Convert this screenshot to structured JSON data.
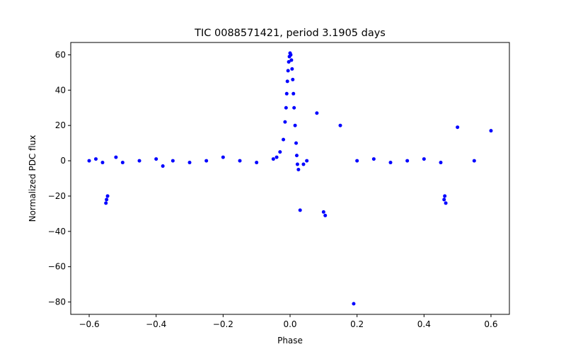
{
  "chart_data": {
    "type": "scatter",
    "title": "TIC 0088571421, period 3.1905 days",
    "xlabel": "Phase",
    "ylabel": "Normalized PDC flux",
    "xlim": [
      -0.655,
      0.655
    ],
    "ylim": [
      -87,
      67
    ],
    "xticks": [
      -0.6,
      -0.4,
      -0.2,
      0.0,
      0.2,
      0.4,
      0.6
    ],
    "xtick_labels": [
      "−0.6",
      "−0.4",
      "−0.2",
      "0.0",
      "0.2",
      "0.4",
      "0.6"
    ],
    "yticks": [
      -80,
      -60,
      -40,
      -20,
      0,
      20,
      40,
      60
    ],
    "ytick_labels": [
      "−80",
      "−60",
      "−40",
      "−20",
      "0",
      "20",
      "40",
      "60"
    ],
    "grid": false,
    "marker_color": "#0000ff",
    "series": [
      {
        "points": [
          [
            -0.6,
            0
          ],
          [
            -0.58,
            1
          ],
          [
            -0.56,
            -1
          ],
          [
            -0.55,
            -24
          ],
          [
            -0.548,
            -22
          ],
          [
            -0.545,
            -20
          ],
          [
            -0.52,
            2
          ],
          [
            -0.5,
            -1
          ],
          [
            -0.45,
            0
          ],
          [
            -0.4,
            1
          ],
          [
            -0.38,
            -3
          ],
          [
            -0.35,
            0
          ],
          [
            -0.3,
            -1
          ],
          [
            -0.25,
            0
          ],
          [
            -0.2,
            2
          ],
          [
            -0.15,
            0
          ],
          [
            -0.1,
            -1
          ],
          [
            -0.05,
            1
          ],
          [
            -0.04,
            2
          ],
          [
            -0.03,
            5
          ],
          [
            -0.02,
            12
          ],
          [
            -0.015,
            22
          ],
          [
            -0.012,
            30
          ],
          [
            -0.01,
            38
          ],
          [
            -0.008,
            45
          ],
          [
            -0.006,
            51
          ],
          [
            -0.004,
            56
          ],
          [
            -0.002,
            59
          ],
          [
            0.0,
            61
          ],
          [
            0.002,
            60
          ],
          [
            0.004,
            57
          ],
          [
            0.006,
            52
          ],
          [
            0.008,
            46
          ],
          [
            0.01,
            38
          ],
          [
            0.012,
            30
          ],
          [
            0.015,
            20
          ],
          [
            0.018,
            10
          ],
          [
            0.02,
            3
          ],
          [
            0.022,
            -2
          ],
          [
            0.025,
            -5
          ],
          [
            0.03,
            -28
          ],
          [
            0.04,
            -2
          ],
          [
            0.05,
            0
          ],
          [
            0.08,
            27
          ],
          [
            0.1,
            -29
          ],
          [
            0.105,
            -31
          ],
          [
            0.15,
            20
          ],
          [
            0.19,
            -81
          ],
          [
            0.2,
            0
          ],
          [
            0.25,
            1
          ],
          [
            0.3,
            -1
          ],
          [
            0.35,
            0
          ],
          [
            0.4,
            1
          ],
          [
            0.45,
            -1
          ],
          [
            0.46,
            -22
          ],
          [
            0.462,
            -20
          ],
          [
            0.465,
            -24
          ],
          [
            0.5,
            19
          ],
          [
            0.55,
            0
          ],
          [
            0.6,
            17
          ]
        ]
      }
    ]
  }
}
